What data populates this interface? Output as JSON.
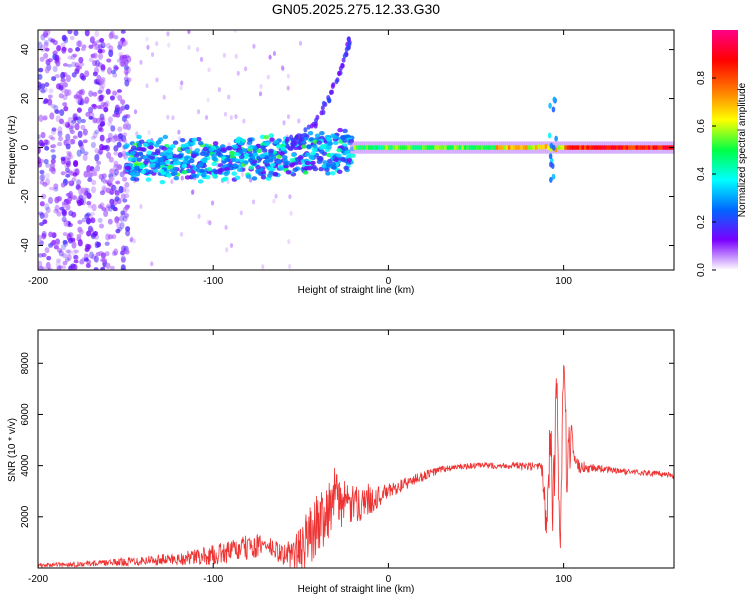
{
  "title": "GN05.2025.275.12.33.G30",
  "colors": {
    "snr_line": "#ee3333",
    "axis": "#000000"
  },
  "chart_data": [
    {
      "type": "heatmap",
      "xlabel": "Height of straight line (km)",
      "ylabel": "Frequency (Hz)",
      "xlim": [
        -200,
        163
      ],
      "ylim": [
        -50,
        48
      ],
      "xticks": [
        -200,
        -100,
        0,
        100
      ],
      "xtick_labels": [
        "-200",
        "-100",
        "0",
        "100"
      ],
      "yticks": [
        -40,
        -20,
        0,
        20,
        40
      ],
      "ytick_labels": [
        "-40",
        "-20",
        "0",
        "20",
        "40"
      ],
      "colorbar": {
        "label": "Normalized spectral amplitude",
        "range": [
          0,
          1
        ],
        "ticks": [
          0,
          0.2,
          0.4,
          0.6,
          0.8
        ],
        "tick_labels": [
          "0.0",
          "0.2",
          "0.4",
          "0.6",
          "0.8"
        ],
        "colormap": [
          "#ffffff",
          "#7a00ff",
          "#0066ff",
          "#00ffff",
          "#00ff44",
          "#ffff00",
          "#ff7700",
          "#ff0000",
          "#ff0088"
        ]
      },
      "features": [
        {
          "name": "noise",
          "x": [
            -200,
            -150
          ],
          "amplitude": 0.12
        },
        {
          "name": "dispersed band",
          "x": [
            -150,
            -20
          ],
          "center_hz": -5,
          "amplitude": 0.3
        },
        {
          "name": "chirp",
          "x": [
            -60,
            -22
          ],
          "hz": [
            0,
            45
          ],
          "amplitude": 0.15
        },
        {
          "name": "carrier",
          "x": [
            -20,
            163
          ],
          "center_hz": 0,
          "amplitude": 0.85
        }
      ]
    },
    {
      "type": "line",
      "xlabel": "Height of straight line (km)",
      "ylabel": "SNR (10 * v/v)",
      "xlim": [
        -200,
        163
      ],
      "ylim": [
        0,
        9300
      ],
      "xticks": [
        -200,
        -100,
        0,
        100
      ],
      "xtick_labels": [
        "-200",
        "-100",
        "0",
        "100"
      ],
      "yticks": [
        2000,
        4000,
        6000,
        8000
      ],
      "ytick_labels": [
        "2000",
        "4000",
        "6000",
        "8000"
      ],
      "series": [
        {
          "name": "SNR",
          "x": [
            -200,
            -180,
            -160,
            -140,
            -120,
            -100,
            -80,
            -70,
            -60,
            -50,
            -45,
            -40,
            -35,
            -30,
            -25,
            -20,
            -15,
            -10,
            -5,
            0,
            10,
            20,
            30,
            40,
            50,
            60,
            70,
            80,
            85,
            88,
            90,
            92,
            94,
            96,
            98,
            100,
            102,
            104,
            106,
            110,
            120,
            130,
            140,
            150,
            160,
            163
          ],
          "y": [
            100,
            150,
            200,
            300,
            350,
            500,
            800,
            900,
            500,
            700,
            1300,
            1800,
            2300,
            2800,
            2500,
            2400,
            2600,
            2700,
            2800,
            3000,
            3300,
            3600,
            3850,
            3950,
            4000,
            4000,
            4000,
            3950,
            3900,
            3700,
            2000,
            5000,
            2500,
            7200,
            600,
            8000,
            3000,
            5200,
            4000,
            3950,
            3900,
            3800,
            3750,
            3700,
            3650,
            3600
          ],
          "noise": [
            80,
            100,
            120,
            200,
            250,
            400,
            500,
            400,
            400,
            900,
            1200,
            1200,
            1300,
            1200,
            900,
            800,
            700,
            600,
            400,
            300,
            250,
            200,
            150,
            120,
            120,
            120,
            130,
            180,
            250,
            400,
            1000,
            1600,
            2000,
            1500,
            500,
            1200,
            1800,
            1000,
            400,
            250,
            150,
            120,
            120,
            120,
            120,
            120
          ]
        }
      ]
    }
  ]
}
